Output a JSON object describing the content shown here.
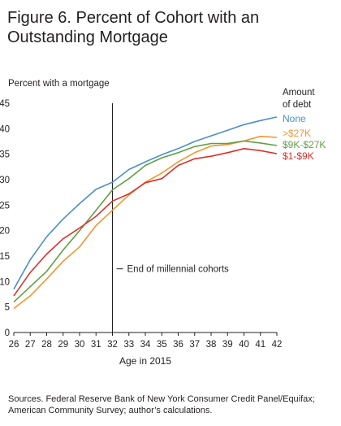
{
  "title_line1": "Figure 6.  Percent of Cohort with an",
  "title_line2": "Outstanding Mortgage",
  "source_line1": "Sources. Federal Reserve Bank of New York Consumer Credit Panel/Equifax;",
  "source_line2": "American Community Survey; author’s calculations.",
  "chart_data": {
    "type": "line",
    "title": "Figure 6. Percent of Cohort with an Outstanding Mortgage",
    "ylabel": "Percent with a mortgage",
    "xlabel": "Age in 2015",
    "x": [
      26,
      27,
      28,
      29,
      30,
      31,
      32,
      33,
      34,
      35,
      36,
      37,
      38,
      39,
      40,
      41,
      42
    ],
    "xlim": [
      26,
      42
    ],
    "ylim": [
      0,
      45
    ],
    "yticks": [
      0,
      5,
      10,
      15,
      20,
      25,
      30,
      35,
      40,
      45
    ],
    "legend_title_line1": "Amount",
    "legend_title_line2": "of debt",
    "legend_position": "right",
    "series": [
      {
        "name": "None",
        "color": "#4a8fc7",
        "values": [
          8.5,
          14.3,
          18.8,
          22.3,
          25.3,
          28.1,
          29.5,
          32.0,
          33.5,
          34.9,
          36.1,
          37.5,
          38.6,
          39.7,
          40.8,
          41.6,
          42.3
        ]
      },
      {
        "name": ">$27K",
        "color": "#f0962e",
        "values": [
          4.7,
          7.2,
          10.5,
          14.0,
          16.8,
          21.0,
          24.0,
          27.0,
          29.5,
          31.3,
          33.5,
          35.3,
          36.6,
          36.9,
          37.6,
          38.5,
          38.3
        ]
      },
      {
        "name": "$9K-$27K",
        "color": "#5ea144",
        "values": [
          6.0,
          9.0,
          12.0,
          16.2,
          20.0,
          24.0,
          28.0,
          30.2,
          32.8,
          34.3,
          35.3,
          36.5,
          37.1,
          37.1,
          37.6,
          37.2,
          36.7
        ]
      },
      {
        "name": "$1-$9K",
        "color": "#d9312b",
        "values": [
          7.2,
          11.8,
          15.4,
          18.4,
          20.5,
          22.8,
          25.8,
          27.2,
          29.4,
          30.2,
          32.8,
          34.1,
          34.6,
          35.3,
          36.1,
          35.7,
          35.1
        ]
      }
    ],
    "annotation": {
      "x": 32,
      "label": "End of millennial cohorts",
      "label_y": 12.5
    }
  }
}
